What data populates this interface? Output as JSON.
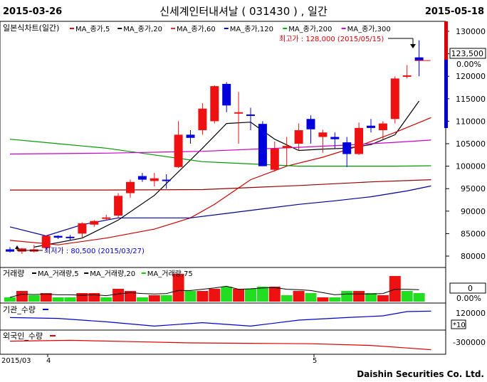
{
  "header": {
    "start_date": "2015-03-26",
    "title": "신세계인터내셔날 ( 031430 ) , 일간",
    "end_date": "2015-05-18"
  },
  "legend_main": {
    "label": "일본식차트(일간)",
    "items": [
      {
        "text": "MA_종가,5",
        "color": "#dd0000"
      },
      {
        "text": "MA_종가,20",
        "color": "#000000"
      },
      {
        "text": "MA_종가,60",
        "color": "#ee3333"
      },
      {
        "text": "MA_종가,120",
        "color": "#0000cc"
      },
      {
        "text": "MA_종가,200",
        "color": "#00aa00"
      },
      {
        "text": "MA_종가,300",
        "color": "#dd00dd"
      }
    ]
  },
  "legend_volume": {
    "label": "거래량",
    "items": [
      {
        "text": "MA_거래량,5",
        "color": "#000000"
      },
      {
        "text": "MA_거래량,20",
        "color": "#000000"
      },
      {
        "text": "MA_거래량,75",
        "color": "#00cc00"
      }
    ]
  },
  "legend_inst": {
    "label": "기관_수량",
    "color": "#0000cc"
  },
  "legend_foreign": {
    "label": "외국인_수량",
    "color": "#dd0000"
  },
  "annotations": {
    "high": "최고가 : 128,000 (2015/05/15)",
    "low": "최저가 : 80,500 (2015/03/27)"
  },
  "price_axis": {
    "ticks": [
      "130000",
      "125000",
      "120000",
      "115000",
      "110000",
      "105000",
      "100000",
      "95000",
      "90000",
      "85000",
      "80000"
    ],
    "current": "123,500",
    "change": "0.00%"
  },
  "volume_axis": {
    "current": "0",
    "change": "0.00%"
  },
  "inst_axis": {
    "tick": "120000",
    "unit": "*10"
  },
  "foreign_axis": {
    "tick": "-300000"
  },
  "x_axis": {
    "labels": [
      "2015/03",
      "4",
      "5"
    ]
  },
  "footer": {
    "brand": "Daishin Securities Co. Ltd."
  },
  "colors": {
    "up": "#ee1111",
    "down": "#0000dd",
    "volume_up": "#ee1111",
    "volume_down": "#22dd22"
  },
  "chart_data": {
    "type": "candlestick",
    "title": "신세계인터내셔날 ( 031430 ) , 일간",
    "x_range": [
      "2015-03-26",
      "2015-05-18"
    ],
    "ylim": [
      78000,
      131000
    ],
    "candles": [
      {
        "o": 81500,
        "h": 82000,
        "l": 80800,
        "c": 81000
      },
      {
        "o": 81000,
        "h": 81800,
        "l": 80500,
        "c": 81700
      },
      {
        "o": 81000,
        "h": 82500,
        "l": 80800,
        "c": 81500
      },
      {
        "o": 81800,
        "h": 84600,
        "l": 81200,
        "c": 84500
      },
      {
        "o": 84500,
        "h": 84600,
        "l": 83800,
        "c": 84100
      },
      {
        "o": 84300,
        "h": 84700,
        "l": 83400,
        "c": 84100
      },
      {
        "o": 85000,
        "h": 87500,
        "l": 84000,
        "c": 87300
      },
      {
        "o": 87000,
        "h": 88000,
        "l": 86500,
        "c": 87800
      },
      {
        "o": 88500,
        "h": 89200,
        "l": 88000,
        "c": 88600
      },
      {
        "o": 89000,
        "h": 94000,
        "l": 88500,
        "c": 93400
      },
      {
        "o": 94000,
        "h": 97000,
        "l": 93000,
        "c": 96500
      },
      {
        "o": 97800,
        "h": 98500,
        "l": 96500,
        "c": 97000
      },
      {
        "o": 96700,
        "h": 98500,
        "l": 95500,
        "c": 97300
      },
      {
        "o": 97000,
        "h": 98200,
        "l": 95000,
        "c": 96800
      },
      {
        "o": 99800,
        "h": 110000,
        "l": 99600,
        "c": 107000
      },
      {
        "o": 107000,
        "h": 108000,
        "l": 105000,
        "c": 106300
      },
      {
        "o": 108000,
        "h": 114000,
        "l": 107000,
        "c": 112800
      },
      {
        "o": 110000,
        "h": 118000,
        "l": 109500,
        "c": 117800
      },
      {
        "o": 118300,
        "h": 118700,
        "l": 112000,
        "c": 113500
      },
      {
        "o": 112000,
        "h": 116500,
        "l": 105000,
        "c": 112000
      },
      {
        "o": 111500,
        "h": 113000,
        "l": 108000,
        "c": 111300
      },
      {
        "o": 109400,
        "h": 110000,
        "l": 100000,
        "c": 100000
      },
      {
        "o": 99200,
        "h": 105500,
        "l": 98800,
        "c": 103900
      },
      {
        "o": 104000,
        "h": 106500,
        "l": 100000,
        "c": 104500
      },
      {
        "o": 105000,
        "h": 109500,
        "l": 103500,
        "c": 108000
      },
      {
        "o": 110500,
        "h": 111300,
        "l": 105000,
        "c": 108200
      },
      {
        "o": 106500,
        "h": 108100,
        "l": 103000,
        "c": 107500
      },
      {
        "o": 106500,
        "h": 107500,
        "l": 104000,
        "c": 106000
      },
      {
        "o": 105300,
        "h": 106500,
        "l": 99800,
        "c": 102700
      },
      {
        "o": 102700,
        "h": 109700,
        "l": 102500,
        "c": 108500
      },
      {
        "o": 109000,
        "h": 110500,
        "l": 107500,
        "c": 108500
      },
      {
        "o": 108000,
        "h": 110000,
        "l": 106000,
        "c": 109500
      },
      {
        "o": 110500,
        "h": 120000,
        "l": 109500,
        "c": 119500
      },
      {
        "o": 120000,
        "h": 122500,
        "l": 119500,
        "c": 120200
      },
      {
        "o": 124200,
        "h": 128000,
        "l": 120000,
        "c": 123500
      }
    ],
    "ma": [
      {
        "name": "MA_종가,20",
        "color": "#000000",
        "points": [
          [
            2,
            82000
          ],
          [
            6,
            84000
          ],
          [
            9,
            88000
          ],
          [
            12,
            93500
          ],
          [
            16,
            104000
          ],
          [
            18,
            109500
          ],
          [
            20,
            109800
          ],
          [
            22,
            106000
          ],
          [
            24,
            103500
          ],
          [
            26,
            103800
          ],
          [
            28,
            104000
          ],
          [
            30,
            104800
          ],
          [
            32,
            107000
          ],
          [
            34,
            114500
          ]
        ]
      },
      {
        "name": "MA_종가,60",
        "color": "#cc0000",
        "points": [
          [
            0,
            83500
          ],
          [
            4,
            82500
          ],
          [
            8,
            84000
          ],
          [
            12,
            86000
          ],
          [
            15,
            88500
          ],
          [
            17,
            91500
          ],
          [
            20,
            97000
          ],
          [
            23,
            100000
          ],
          [
            26,
            102000
          ],
          [
            29,
            104500
          ],
          [
            32,
            107500
          ],
          [
            35,
            110800
          ]
        ]
      },
      {
        "name": "MA_종가,120",
        "color": "#000099",
        "points": [
          [
            0,
            86500
          ],
          [
            3,
            84500
          ],
          [
            6,
            87000
          ],
          [
            9,
            88500
          ],
          [
            12,
            88500
          ],
          [
            15,
            88500
          ],
          [
            18,
            89500
          ],
          [
            21,
            90500
          ],
          [
            24,
            91500
          ],
          [
            27,
            92300
          ],
          [
            30,
            93200
          ],
          [
            33,
            94500
          ],
          [
            35,
            95600
          ]
        ]
      },
      {
        "name": "MA_종가,200",
        "color": "#009900",
        "points": [
          [
            0,
            106000
          ],
          [
            4,
            105000
          ],
          [
            8,
            104000
          ],
          [
            12,
            102500
          ],
          [
            16,
            101000
          ],
          [
            20,
            100500
          ],
          [
            24,
            100000
          ],
          [
            28,
            100000
          ],
          [
            32,
            100000
          ],
          [
            35,
            100100
          ]
        ]
      },
      {
        "name": "MA_종가,300",
        "color": "#cc00cc",
        "points": [
          [
            0,
            102700
          ],
          [
            8,
            102900
          ],
          [
            16,
            103300
          ],
          [
            24,
            104200
          ],
          [
            28,
            104700
          ],
          [
            32,
            105300
          ],
          [
            35,
            105800
          ]
        ]
      },
      {
        "name": "MA_종가,long",
        "color": "#990000",
        "points": [
          [
            0,
            94700
          ],
          [
            8,
            94700
          ],
          [
            16,
            94800
          ],
          [
            24,
            95700
          ],
          [
            30,
            96500
          ],
          [
            35,
            97000
          ]
        ]
      }
    ],
    "volume": [
      {
        "v": 2,
        "up": false
      },
      {
        "v": 5,
        "up": true
      },
      {
        "v": 3,
        "up": false
      },
      {
        "v": 4,
        "up": true
      },
      {
        "v": 2,
        "up": false
      },
      {
        "v": 2,
        "up": false
      },
      {
        "v": 4,
        "up": true
      },
      {
        "v": 4,
        "up": true
      },
      {
        "v": 2,
        "up": false
      },
      {
        "v": 6,
        "up": true
      },
      {
        "v": 5,
        "up": true
      },
      {
        "v": 2,
        "up": false
      },
      {
        "v": 3,
        "up": true
      },
      {
        "v": 3,
        "up": false
      },
      {
        "v": 13,
        "up": true
      },
      {
        "v": 5,
        "up": false
      },
      {
        "v": 5,
        "up": true
      },
      {
        "v": 6,
        "up": true
      },
      {
        "v": 7,
        "up": false
      },
      {
        "v": 6,
        "up": true
      },
      {
        "v": 6,
        "up": false
      },
      {
        "v": 7,
        "up": false
      },
      {
        "v": 7,
        "up": true
      },
      {
        "v": 3,
        "up": false
      },
      {
        "v": 5,
        "up": true
      },
      {
        "v": 4,
        "up": false
      },
      {
        "v": 2,
        "up": true
      },
      {
        "v": 2,
        "up": false
      },
      {
        "v": 5,
        "up": false
      },
      {
        "v": 5,
        "up": true
      },
      {
        "v": 4,
        "up": false
      },
      {
        "v": 3,
        "up": true
      },
      {
        "v": 12,
        "up": true
      },
      {
        "v": 5,
        "up": false
      },
      {
        "v": 4,
        "up": false
      }
    ],
    "institution_qty": [
      [
        0,
        118000
      ],
      [
        4,
        117000
      ],
      [
        8,
        113000
      ],
      [
        12,
        108000
      ],
      [
        16,
        112000
      ],
      [
        20,
        108000
      ],
      [
        24,
        115000
      ],
      [
        28,
        118000
      ],
      [
        31,
        120000
      ],
      [
        33,
        125000
      ],
      [
        35,
        125500
      ]
    ],
    "foreign_qty": [
      [
        0,
        -298000
      ],
      [
        5,
        -297000
      ],
      [
        10,
        -298500
      ],
      [
        15,
        -300000
      ],
      [
        20,
        -300500
      ],
      [
        25,
        -301000
      ],
      [
        30,
        -303000
      ],
      [
        33,
        -306000
      ],
      [
        35,
        -308000
      ]
    ]
  }
}
